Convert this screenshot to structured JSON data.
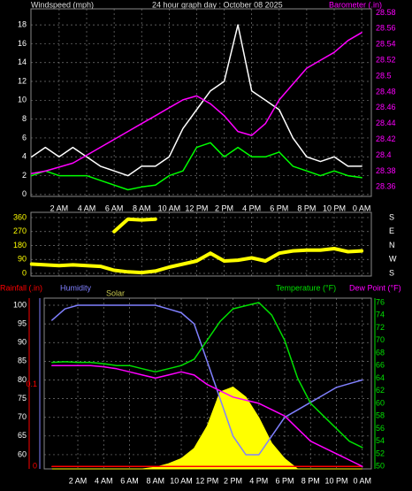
{
  "chart_data": [
    {
      "type": "line",
      "title": "24 hour graph day : October 08 2025",
      "y_label": "Windspeed (mph)",
      "x": [
        0,
        1,
        2,
        3,
        4,
        5,
        6,
        7,
        8,
        9,
        10,
        11,
        12,
        13,
        14,
        15,
        16,
        17,
        18,
        19,
        20,
        21,
        22,
        23,
        24
      ],
      "xlim": [
        -0.05,
        24.7
      ],
      "xticks": [
        {
          "value": 2,
          "label": "2 AM"
        },
        {
          "value": 4,
          "label": "4 AM"
        },
        {
          "value": 6,
          "label": "6 AM"
        },
        {
          "value": 8,
          "label": "8 AM"
        },
        {
          "value": 10,
          "label": "10 AM"
        },
        {
          "value": 12,
          "label": "12 PM"
        },
        {
          "value": 14,
          "label": "2 PM"
        },
        {
          "value": 16,
          "label": "4 PM"
        },
        {
          "value": 18,
          "label": "6 PM"
        },
        {
          "value": 20,
          "label": "8 PM"
        },
        {
          "value": 22,
          "label": "10 PM"
        },
        {
          "value": 24,
          "label": "0 AM"
        }
      ],
      "ylim": [
        -0.2,
        19.7
      ],
      "yticks": [
        0,
        2,
        4,
        6,
        8,
        10,
        12,
        14,
        16,
        18
      ],
      "y2lim": [
        28.348,
        28.585
      ],
      "y2ticks": [
        28.36,
        28.38,
        28.4,
        28.42,
        28.44,
        28.46,
        28.48,
        28.5,
        28.52,
        28.54,
        28.56,
        28.58
      ],
      "grid": true,
      "series": [
        {
          "color": "#ffffff",
          "values": [
            4,
            5,
            4,
            5,
            4,
            3,
            2.5,
            2,
            3,
            3,
            4,
            7,
            9,
            11,
            12,
            18,
            11,
            10,
            9,
            6,
            4,
            3.5,
            4,
            3,
            3
          ]
        },
        {
          "color": "#00ff00",
          "values": [
            2,
            2.5,
            2,
            2,
            2,
            1.5,
            1,
            0.5,
            0.8,
            1,
            2,
            2.5,
            5,
            5.5,
            4,
            5,
            4,
            4,
            4.5,
            3,
            2.5,
            2,
            2.5,
            2,
            1.8
          ]
        },
        {
          "name": "Barometer (.in)",
          "color": "#ff00ff",
          "axis": "y2",
          "values": [
            28.377,
            28.38,
            28.385,
            28.39,
            28.4,
            28.41,
            28.42,
            28.43,
            28.44,
            28.45,
            28.46,
            28.47,
            28.475,
            28.465,
            28.45,
            28.43,
            28.425,
            28.44,
            28.47,
            28.49,
            28.51,
            28.52,
            28.53,
            28.545,
            28.555
          ]
        }
      ]
    },
    {
      "type": "line",
      "x": [
        0,
        1,
        2,
        3,
        4,
        5,
        6,
        7,
        8,
        9,
        10,
        11,
        12,
        13,
        14,
        15,
        16,
        17,
        18,
        19,
        20,
        21,
        22,
        23,
        24
      ],
      "xlim": [
        -0.05,
        24.7
      ],
      "ylim": [
        -17,
        394
      ],
      "yticks": [
        0,
        90,
        180,
        270,
        360
      ],
      "y2lim": [
        -17,
        394
      ],
      "y2ticks": [
        {
          "value": 360,
          "label": "S"
        },
        {
          "value": 270,
          "label": "E"
        },
        {
          "value": 180,
          "label": "N"
        },
        {
          "value": 90,
          "label": "W"
        },
        {
          "value": 0,
          "label": "S"
        }
      ],
      "grid": true,
      "series": [
        {
          "color": "#ffff00",
          "values": [
            60,
            55,
            50,
            55,
            50,
            45,
            20,
            10,
            5,
            15,
            40,
            60,
            80,
            130,
            80,
            85,
            100,
            80,
            130,
            145,
            150,
            150,
            160,
            140,
            145
          ]
        },
        {
          "color": "#ffff00",
          "values": [
            null,
            null,
            null,
            null,
            null,
            null,
            270,
            350,
            345,
            350,
            null,
            null,
            null,
            null,
            null,
            null,
            null,
            null,
            null,
            null,
            null,
            null,
            null,
            null,
            null
          ]
        }
      ]
    },
    {
      "type": "line",
      "x": [
        0,
        1,
        2,
        3,
        4,
        5,
        6,
        7,
        8,
        9,
        10,
        11,
        12,
        13,
        14,
        15,
        16,
        17,
        18,
        19,
        20,
        21,
        22,
        23,
        24
      ],
      "xlim": [
        -0.6,
        24.7
      ],
      "xticks": [
        {
          "value": 2,
          "label": "2 AM"
        },
        {
          "value": 4,
          "label": "4 AM"
        },
        {
          "value": 6,
          "label": "6 AM"
        },
        {
          "value": 8,
          "label": "8 AM"
        },
        {
          "value": 10,
          "label": "10 AM"
        },
        {
          "value": 12,
          "label": "12 PM"
        },
        {
          "value": 14,
          "label": "2 PM"
        },
        {
          "value": 16,
          "label": "4 PM"
        },
        {
          "value": 18,
          "label": "6 PM"
        },
        {
          "value": 20,
          "label": "8 PM"
        },
        {
          "value": 22,
          "label": "10 PM"
        },
        {
          "value": 24,
          "label": "0 AM"
        }
      ],
      "ylim": [
        56.2,
        101.9
      ],
      "yticks": [
        60,
        65,
        70,
        75,
        80,
        85,
        90,
        95,
        100
      ],
      "y2lim": [
        49.6,
        76.7
      ],
      "y2ticks": [
        50,
        52,
        54,
        56,
        58,
        60,
        62,
        64,
        66,
        68,
        70,
        72,
        74,
        76
      ],
      "y3lim": [
        -0.003,
        0.205
      ],
      "y3ticks": [
        0,
        0.1
      ],
      "y4lim": [
        0,
        1000
      ],
      "grid": true,
      "series": [
        {
          "name": "Solar",
          "color": "#ffff00",
          "axis": "y4",
          "values": [
            0,
            0,
            0,
            0,
            0,
            0,
            0,
            0,
            10,
            30,
            60,
            120,
            250,
            450,
            480,
            420,
            300,
            150,
            60,
            0,
            0,
            0,
            0,
            0,
            0
          ]
        },
        {
          "name": "Rainfall (.in)",
          "color": "#ff0000",
          "axis": "y3",
          "values": [
            0,
            0,
            0,
            0,
            0,
            0,
            0,
            0,
            0,
            0,
            0,
            0,
            0,
            0,
            0,
            0,
            0,
            0,
            0,
            0,
            0,
            0,
            0,
            0,
            0
          ]
        },
        {
          "name": "Humidity",
          "color": "#8080ff",
          "values": [
            96,
            99,
            100,
            100,
            100,
            100,
            100,
            100,
            100,
            99,
            98,
            95,
            85,
            75,
            65,
            60,
            60,
            65,
            70,
            72,
            74,
            76,
            78,
            79,
            80
          ]
        },
        {
          "name": "Temperature (°F)",
          "color": "#00e000",
          "axis": "y2",
          "values": [
            66.5,
            66.6,
            66.5,
            66.5,
            66.3,
            66,
            66,
            65.5,
            65,
            65.5,
            66,
            67,
            70,
            73,
            75,
            75.5,
            76,
            74,
            70,
            64,
            60,
            58,
            56,
            54,
            53
          ]
        },
        {
          "name": "Dew Point (°F)",
          "color": "#ff00ff",
          "axis": "y2",
          "values": [
            66,
            66,
            66,
            66,
            65.8,
            65.5,
            65,
            64.5,
            64,
            64.5,
            65,
            64.5,
            63,
            62,
            61,
            60.5,
            60,
            59,
            58,
            56,
            54,
            53,
            52,
            51,
            50
          ]
        }
      ]
    }
  ]
}
